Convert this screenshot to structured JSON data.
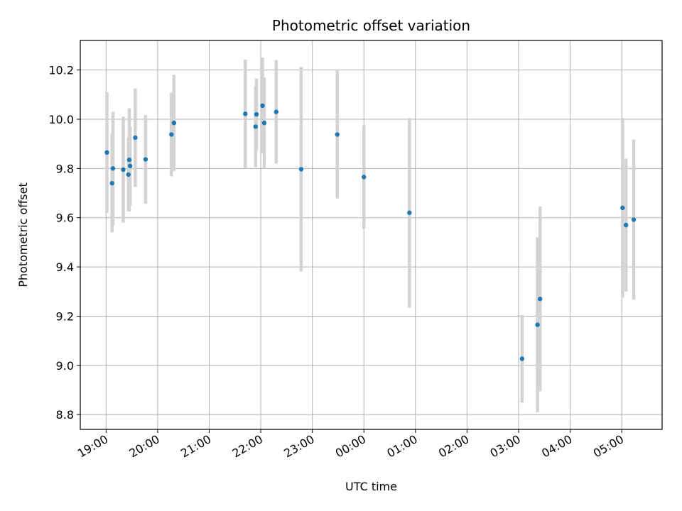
{
  "chart_data": {
    "type": "scatter",
    "title": "Photometric offset variation",
    "xlabel": "UTC time",
    "ylabel": "Photometric offset",
    "grid": true,
    "legend": "none",
    "x_axis": "time",
    "xlim": [
      "18:30",
      "29:47"
    ],
    "ylim": [
      8.74,
      10.32
    ],
    "x_ticks": [
      {
        "t": "19:00",
        "label": "19:00"
      },
      {
        "t": "20:00",
        "label": "20:00"
      },
      {
        "t": "21:00",
        "label": "21:00"
      },
      {
        "t": "22:00",
        "label": "22:00"
      },
      {
        "t": "23:00",
        "label": "23:00"
      },
      {
        "t": "24:00",
        "label": "00:00"
      },
      {
        "t": "25:00",
        "label": "01:00"
      },
      {
        "t": "26:00",
        "label": "02:00"
      },
      {
        "t": "27:00",
        "label": "03:00"
      },
      {
        "t": "28:00",
        "label": "04:00"
      },
      {
        "t": "29:00",
        "label": "05:00"
      }
    ],
    "y_ticks": [
      8.8,
      9.0,
      9.2,
      9.4,
      9.6,
      9.8,
      10.0,
      10.2
    ],
    "colors": {
      "points": "#1f77b4",
      "errorbars": "#d3d3d3"
    },
    "points": [
      {
        "t": "19:01",
        "y": 9.865,
        "err": 0.245
      },
      {
        "t": "19:07",
        "y": 9.74,
        "err": 0.2
      },
      {
        "t": "19:08",
        "y": 9.8,
        "err": 0.23
      },
      {
        "t": "19:20",
        "y": 9.795,
        "err": 0.215
      },
      {
        "t": "19:26",
        "y": 9.775,
        "err": 0.15
      },
      {
        "t": "19:27",
        "y": 9.835,
        "err": 0.21
      },
      {
        "t": "19:28",
        "y": 9.81,
        "err": 0.16
      },
      {
        "t": "19:34",
        "y": 9.925,
        "err": 0.2
      },
      {
        "t": "19:46",
        "y": 9.837,
        "err": 0.18
      },
      {
        "t": "20:16",
        "y": 9.938,
        "err": 0.17
      },
      {
        "t": "20:19",
        "y": 9.985,
        "err": 0.195
      },
      {
        "t": "21:42",
        "y": 10.022,
        "err": 0.22
      },
      {
        "t": "21:54",
        "y": 9.97,
        "err": 0.165
      },
      {
        "t": "21:55",
        "y": 10.02,
        "err": 0.145
      },
      {
        "t": "22:02",
        "y": 10.055,
        "err": 0.195
      },
      {
        "t": "22:04",
        "y": 9.985,
        "err": 0.185
      },
      {
        "t": "22:18",
        "y": 10.03,
        "err": 0.21
      },
      {
        "t": "22:47",
        "y": 9.797,
        "err": 0.415
      },
      {
        "t": "23:29",
        "y": 9.938,
        "err": 0.26
      },
      {
        "t": "24:00",
        "y": 9.765,
        "err": 0.21
      },
      {
        "t": "24:53",
        "y": 9.62,
        "err": 0.385
      },
      {
        "t": "27:04",
        "y": 9.027,
        "err": 0.178
      },
      {
        "t": "27:22",
        "y": 9.165,
        "err": 0.355
      },
      {
        "t": "27:25",
        "y": 9.27,
        "err": 0.375
      },
      {
        "t": "29:01",
        "y": 9.64,
        "err": 0.365
      },
      {
        "t": "29:05",
        "y": 9.57,
        "err": 0.27
      },
      {
        "t": "29:14",
        "y": 9.592,
        "err": 0.325
      }
    ]
  }
}
